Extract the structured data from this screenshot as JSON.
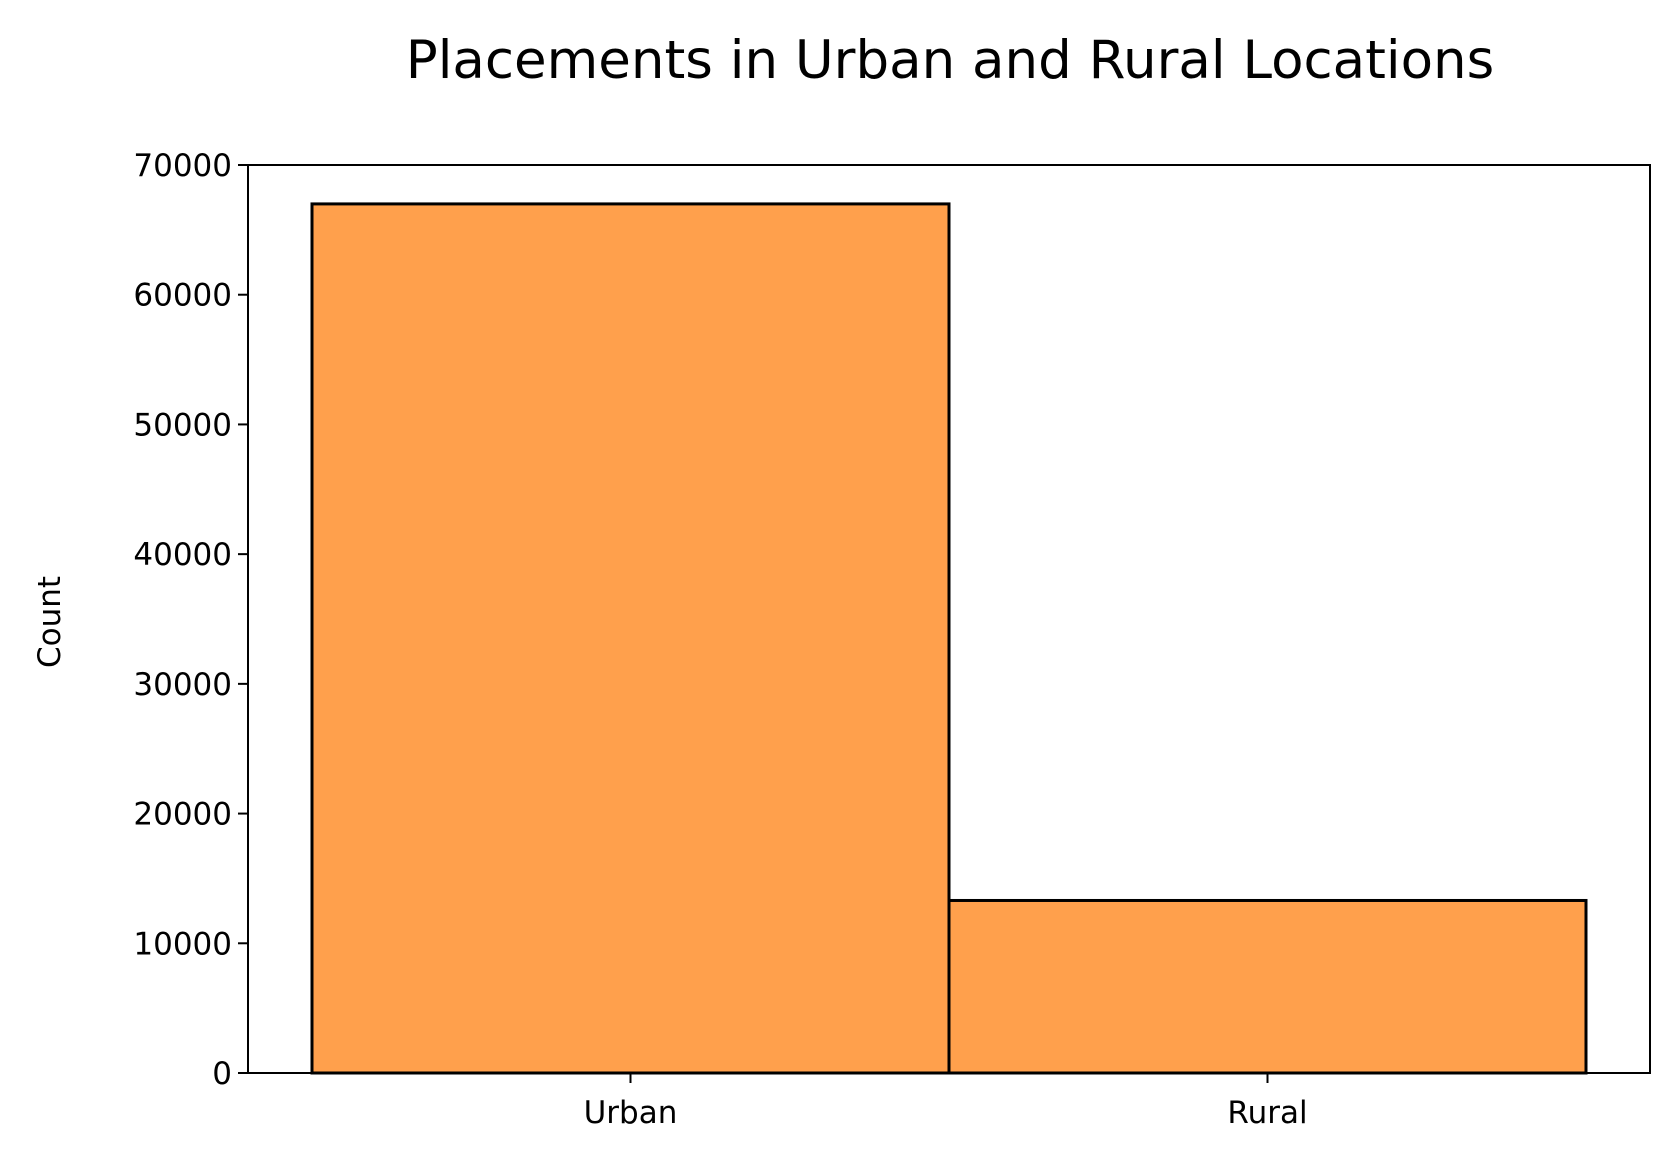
{
  "chart_data": {
    "type": "bar",
    "title": "Placements in Urban and Rural Locations",
    "xlabel": "",
    "ylabel": "Count",
    "categories": [
      "Urban",
      "Rural"
    ],
    "values": [
      67000,
      13300
    ],
    "ylim": [
      0,
      70000
    ],
    "yticks": [
      0,
      10000,
      20000,
      30000,
      40000,
      50000,
      60000,
      70000
    ],
    "grid": false,
    "legend": "none",
    "bar_color": "#ffa04c",
    "edge_color": "#000000"
  }
}
